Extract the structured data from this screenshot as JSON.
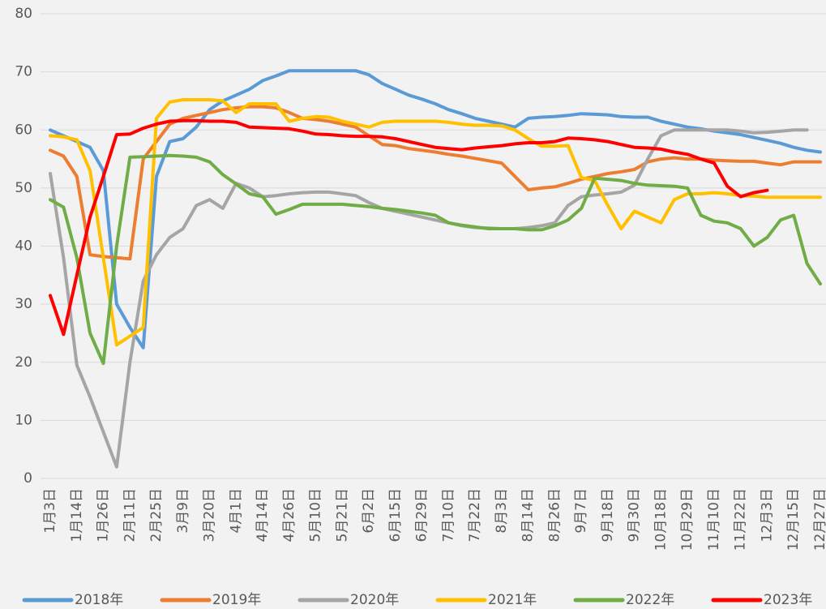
{
  "chart_data": {
    "type": "line",
    "categories": [
      "1月3日",
      null,
      "1月14日",
      null,
      "1月26日",
      null,
      "2月11日",
      null,
      "2月25日",
      null,
      "3月9日",
      null,
      "3月20日",
      null,
      "4月1日",
      null,
      "4月14日",
      null,
      "4月26日",
      null,
      "5月10日",
      null,
      "5月21日",
      null,
      "6月2日",
      null,
      "6月15日",
      null,
      "6月29日",
      null,
      "7月10日",
      null,
      "7月22日",
      null,
      "8月3日",
      null,
      "8月14日",
      null,
      "8月26日",
      null,
      "9月7日",
      null,
      "9月18日",
      null,
      "9月30日",
      null,
      "10月18日",
      null,
      "10月29日",
      null,
      "11月10日",
      null,
      "11月22日",
      null,
      "12月3日",
      null,
      "12月15日",
      null,
      "12月27日"
    ],
    "series": [
      {
        "name": "2018年",
        "color": "#5b9bd5",
        "values": [
          60,
          59,
          58,
          57,
          53,
          30,
          26,
          22.5,
          52,
          58,
          58.5,
          60.5,
          63.5,
          65,
          66,
          67,
          68.5,
          69.3,
          70.2,
          70.2,
          70.2,
          70.2,
          70.2,
          70.2,
          69.5,
          68,
          67,
          66,
          65.3,
          64.5,
          63.5,
          62.8,
          62,
          61.5,
          61,
          60.5,
          62,
          62.2,
          62.3,
          62.5,
          62.8,
          62.7,
          62.6,
          62.3,
          62.2,
          62.2,
          61.5,
          61,
          60.5,
          60.2,
          59.8,
          59.5,
          59.2,
          58.7,
          58.2,
          57.7,
          57,
          56.5,
          56.2
        ]
      },
      {
        "name": "2019年",
        "color": "#ed7d31",
        "values": [
          56.5,
          55.5,
          52,
          38.5,
          38.2,
          38,
          37.8,
          55,
          58,
          61,
          62,
          62.5,
          63,
          63.5,
          63.8,
          64,
          64,
          63.8,
          63,
          62,
          61.8,
          61.5,
          61,
          60.5,
          59,
          57.5,
          57.3,
          56.8,
          56.5,
          56.2,
          55.8,
          55.5,
          55.1,
          54.7,
          54.3,
          52,
          49.7,
          50,
          50.2,
          50.8,
          51.5,
          52,
          52.5,
          52.8,
          53.2,
          54.5,
          55,
          55.2,
          55,
          55,
          54.8,
          54.7,
          54.6,
          54.6,
          54.3,
          54,
          54.5,
          54.5,
          54.5
        ]
      },
      {
        "name": "2020年",
        "color": "#a5a5a5",
        "values": [
          52.5,
          38,
          19.5,
          14,
          8,
          2,
          20,
          34,
          38.5,
          41.5,
          43,
          47,
          48,
          46.5,
          50.8,
          50,
          48.5,
          48.7,
          49,
          49.2,
          49.3,
          49.3,
          49,
          48.7,
          47.5,
          46.5,
          46,
          45.5,
          45,
          44.5,
          44,
          43.5,
          43.2,
          43.1,
          43,
          43,
          43.2,
          43.5,
          44,
          47,
          48.5,
          48.8,
          49,
          49.3,
          50.5,
          55,
          59,
          60,
          60,
          60,
          60,
          60,
          59.8,
          59.5,
          59.6,
          59.8,
          60,
          60,
          null
        ]
      },
      {
        "name": "2021年",
        "color": "#ffc000",
        "values": [
          59,
          58.8,
          58.3,
          53,
          38,
          23,
          24.5,
          26,
          62,
          64.8,
          65.2,
          65.2,
          65.2,
          65,
          63,
          64.5,
          64.5,
          64.5,
          61.5,
          62,
          62.3,
          62.2,
          61.5,
          61,
          60.5,
          61.3,
          61.5,
          61.5,
          61.5,
          61.5,
          61.3,
          61,
          60.8,
          60.8,
          60.7,
          60,
          58.5,
          57.2,
          57.2,
          57.3,
          51.8,
          51.3,
          47,
          43,
          46,
          45,
          44,
          48,
          49,
          49,
          49.2,
          49,
          48.7,
          48.6,
          48.4,
          48.4,
          48.4,
          48.4,
          48.4
        ]
      },
      {
        "name": "2022年",
        "color": "#70ad47",
        "values": [
          48,
          46.7,
          38,
          25,
          19.8,
          40,
          55.3,
          55.4,
          55.5,
          55.6,
          55.5,
          55.3,
          54.5,
          52.3,
          50.7,
          49,
          48.5,
          45.5,
          46.3,
          47.2,
          47.2,
          47.2,
          47.2,
          47,
          46.8,
          46.5,
          46.3,
          46,
          45.7,
          45.3,
          44,
          43.6,
          43.3,
          43,
          43,
          43,
          42.8,
          42.8,
          43.5,
          44.5,
          46.5,
          51.7,
          51.5,
          51.3,
          50.8,
          50.5,
          50.4,
          50.3,
          50,
          45.3,
          44.3,
          44,
          43,
          40,
          41.5,
          44.5,
          45.3,
          37,
          33.5
        ]
      },
      {
        "name": "2023年",
        "color": "#ff0000",
        "values": [
          31.5,
          24.8,
          35,
          45,
          52,
          59.2,
          59.3,
          60.3,
          61,
          61.5,
          61.6,
          61.6,
          61.5,
          61.5,
          61.3,
          60.5,
          60.4,
          60.3,
          60.2,
          59.8,
          59.3,
          59.2,
          59,
          58.9,
          58.9,
          58.8,
          58.5,
          58,
          57.5,
          57,
          56.8,
          56.6,
          56.9,
          57.1,
          57.3,
          57.6,
          57.8,
          57.8,
          58,
          58.6,
          58.5,
          58.3,
          58,
          57.5,
          57,
          56.9,
          56.7,
          56.2,
          55.8,
          55,
          54.3,
          50.3,
          48.5,
          49.2,
          49.6,
          null,
          null,
          null,
          null
        ]
      }
    ],
    "ylim": [
      0,
      80
    ],
    "yticks": [
      0,
      10,
      20,
      30,
      40,
      50,
      60,
      70,
      80
    ],
    "grid": true,
    "legend": "bottom"
  }
}
